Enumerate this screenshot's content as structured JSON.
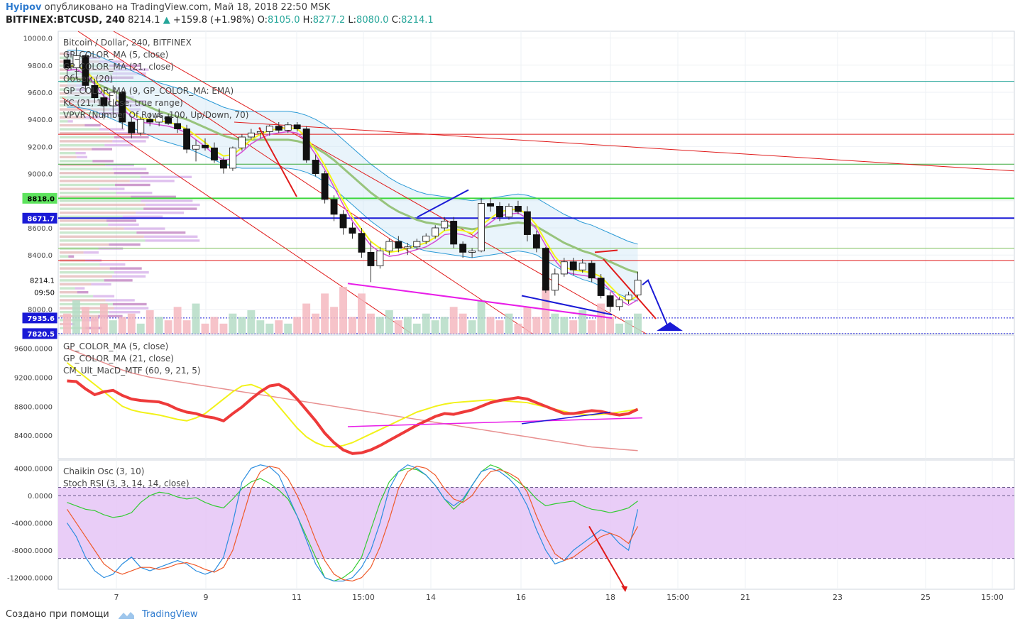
{
  "header": {
    "author": "Hyipov",
    "published_text": "опубликовано на TradingView.com, Май 18, 2018 22:50 MSK",
    "symbol": "BITFINEX:BTCUSD, 240",
    "last": "8214.1",
    "change_arrow": "▲",
    "change": "+159.8 (+1.98%)",
    "o_label": "O:",
    "o": "8105.0",
    "h_label": "H:",
    "h": "8277.2",
    "l_label": "L:",
    "l": "8080.0",
    "c_label": "C:",
    "c": "8214.1"
  },
  "main_pane": {
    "legend": [
      "Bitcoin / Dollar, 240, BITFINEX",
      "GP_COLOR_MA (5, close)",
      "GP_COLOR_MA (21, close)",
      "Объем (20)",
      "GP_COLOR_MA (9, GP_COLOR_MA: EMA)",
      "KC (21, 1, close, true range)",
      "VPVR (Number Of Rows, 100, Up/Down, 70)"
    ],
    "y_ticks": [
      "10000.0",
      "9800.0",
      "9600.0",
      "9400.0",
      "9200.0",
      "9000.0",
      "8600.0",
      "8400.0",
      "8000.0"
    ],
    "badges": [
      {
        "text": "8818.0",
        "color": "#5ee35e",
        "text_color": "#000000"
      },
      {
        "text": "8671.7",
        "color": "#1a1ad6",
        "text_color": "#ffffff"
      },
      {
        "text": "8214.1",
        "color": "#ffffff",
        "text_color": "#000000"
      },
      {
        "text": "09:50",
        "color": "#ffffff",
        "text_color": "#000000"
      },
      {
        "text": "7935.6",
        "color": "#1a1ad6",
        "text_color": "#ffffff"
      },
      {
        "text": "7820.5",
        "color": "#1a1ad6",
        "text_color": "#ffffff"
      }
    ]
  },
  "macd_pane": {
    "legend": [
      "GP_COLOR_MA (5, close)",
      "GP_COLOR_MA (21, close)",
      "CM_Ult_MacD_MTF (60, 9, 21, 5)"
    ],
    "y_ticks": [
      "9600.0000",
      "9200.0000",
      "8800.0000",
      "8400.0000"
    ]
  },
  "osc_pane": {
    "legend": [
      "Chaikin Osc (3, 10)",
      "Stoch RSI (3, 3, 14, 14, close)"
    ],
    "y_ticks": [
      "4000.0000",
      "0.0000",
      "-4000.0000",
      "-8000.0000",
      "-12000.0000"
    ]
  },
  "x_axis": {
    "ticks": [
      "7",
      "9",
      "11",
      "15:00",
      "14",
      "16",
      "18",
      "15:00",
      "21",
      "23",
      "25",
      "15:00"
    ]
  },
  "footer": {
    "created_with": "Создано при помощи",
    "brand": "TradingView"
  },
  "colors": {
    "up": "#26a69a",
    "down": "#000000",
    "band": "#2b9ad6",
    "ma_yellow": "#f5f51a",
    "ma_green": "#8fbf6f",
    "stoch_rsi_band": "#e7c8f6",
    "trend_red": "#e01b1b",
    "trend_blue": "#1a1ad6",
    "trend_magenta": "#e81ee8"
  },
  "chart_data": {
    "type": "candlestick",
    "symbol": "BITFINEX:BTCUSD",
    "timeframe": "240",
    "ylim": [
      7820,
      10050
    ],
    "x_range": [
      "May 6",
      "May 26"
    ],
    "candles": [
      [
        9840,
        9900,
        9720,
        9780
      ],
      [
        9780,
        9930,
        9700,
        9870
      ],
      [
        9870,
        9880,
        9600,
        9650
      ],
      [
        9650,
        9700,
        9520,
        9560
      ],
      [
        9560,
        9620,
        9400,
        9500
      ],
      [
        9500,
        9650,
        9460,
        9600
      ],
      [
        9600,
        9610,
        9330,
        9380
      ],
      [
        9380,
        9420,
        9260,
        9300
      ],
      [
        9300,
        9420,
        9280,
        9400
      ],
      [
        9400,
        9450,
        9350,
        9380
      ],
      [
        9380,
        9480,
        9350,
        9420
      ],
      [
        9420,
        9440,
        9360,
        9370
      ],
      [
        9370,
        9420,
        9300,
        9330
      ],
      [
        9330,
        9360,
        9150,
        9180
      ],
      [
        9180,
        9250,
        9090,
        9210
      ],
      [
        9210,
        9260,
        9170,
        9190
      ],
      [
        9190,
        9230,
        9080,
        9100
      ],
      [
        9100,
        9120,
        9000,
        9040
      ],
      [
        9040,
        9200,
        9020,
        9190
      ],
      [
        9190,
        9290,
        9170,
        9270
      ],
      [
        9270,
        9330,
        9250,
        9300
      ],
      [
        9300,
        9340,
        9260,
        9310
      ],
      [
        9310,
        9360,
        9280,
        9350
      ],
      [
        9350,
        9380,
        9300,
        9320
      ],
      [
        9320,
        9380,
        9300,
        9360
      ],
      [
        9360,
        9380,
        9310,
        9330
      ],
      [
        9330,
        9350,
        9080,
        9100
      ],
      [
        9100,
        9140,
        8980,
        9000
      ],
      [
        9000,
        9020,
        8780,
        8810
      ],
      [
        8810,
        8840,
        8650,
        8700
      ],
      [
        8700,
        8730,
        8550,
        8600
      ],
      [
        8600,
        8640,
        8520,
        8560
      ],
      [
        8560,
        8600,
        8380,
        8420
      ],
      [
        8420,
        8500,
        8200,
        8320
      ],
      [
        8320,
        8460,
        8300,
        8430
      ],
      [
        8430,
        8520,
        8400,
        8500
      ],
      [
        8500,
        8540,
        8420,
        8450
      ],
      [
        8450,
        8490,
        8400,
        8460
      ],
      [
        8460,
        8520,
        8440,
        8500
      ],
      [
        8500,
        8560,
        8480,
        8540
      ],
      [
        8540,
        8620,
        8520,
        8600
      ],
      [
        8600,
        8680,
        8580,
        8650
      ],
      [
        8650,
        8680,
        8450,
        8480
      ],
      [
        8480,
        8500,
        8380,
        8420
      ],
      [
        8420,
        8450,
        8380,
        8430
      ],
      [
        8430,
        8820,
        8420,
        8780
      ],
      [
        8780,
        8820,
        8720,
        8760
      ],
      [
        8760,
        8790,
        8650,
        8680
      ],
      [
        8680,
        8780,
        8660,
        8760
      ],
      [
        8760,
        8800,
        8700,
        8720
      ],
      [
        8720,
        8760,
        8500,
        8550
      ],
      [
        8550,
        8580,
        8420,
        8450
      ],
      [
        8450,
        8460,
        8120,
        8140
      ],
      [
        8140,
        8300,
        8100,
        8260
      ],
      [
        8260,
        8380,
        8240,
        8350
      ],
      [
        8350,
        8380,
        8250,
        8290
      ],
      [
        8290,
        8370,
        8270,
        8340
      ],
      [
        8340,
        8360,
        8200,
        8230
      ],
      [
        8230,
        8260,
        8080,
        8100
      ],
      [
        8100,
        8130,
        7980,
        8020
      ],
      [
        8020,
        8090,
        7990,
        8070
      ],
      [
        8070,
        8130,
        8040,
        8105
      ],
      [
        8105,
        8277,
        8080,
        8214
      ]
    ],
    "ma_fast": [
      9790,
      9800,
      9760,
      9690,
      9600,
      9560,
      9510,
      9450,
      9410,
      9400,
      9390,
      9380,
      9360,
      9330,
      9280,
      9230,
      9170,
      9130,
      9140,
      9190,
      9250,
      9290,
      9320,
      9330,
      9340,
      9330,
      9270,
      9170,
      9060,
      8930,
      8800,
      8680,
      8590,
      8500,
      8450,
      8420,
      8430,
      8450,
      8470,
      8490,
      8530,
      8580,
      8590,
      8580,
      8560,
      8620,
      8670,
      8720,
      8730,
      8740,
      8700,
      8620,
      8500,
      8390,
      8310,
      8290,
      8280,
      8270,
      8240,
      8170,
      8100,
      8060,
      8100
    ],
    "ma_slow": [
      9700,
      9700,
      9690,
      9670,
      9640,
      9610,
      9580,
      9550,
      9520,
      9490,
      9460,
      9440,
      9420,
      9400,
      9370,
      9340,
      9310,
      9280,
      9260,
      9250,
      9250,
      9250,
      9250,
      9250,
      9250,
      9240,
      9220,
      9190,
      9150,
      9100,
      9040,
      8980,
      8920,
      8860,
      8810,
      8760,
      8720,
      8690,
      8660,
      8640,
      8630,
      8620,
      8610,
      8600,
      8590,
      8600,
      8610,
      8620,
      8630,
      8640,
      8630,
      8610,
      8570,
      8530,
      8490,
      8460,
      8430,
      8410,
      8380,
      8350,
      8320,
      8290,
      8270
    ],
    "volume": [
      6,
      10,
      8,
      5,
      9,
      4,
      5,
      6,
      3,
      7,
      5,
      4,
      8,
      4,
      9,
      3,
      5,
      3,
      6,
      5,
      7,
      4,
      3,
      4,
      3,
      5,
      9,
      6,
      12,
      8,
      14,
      5,
      12,
      6,
      5,
      7,
      4,
      5,
      3,
      6,
      4,
      5,
      8,
      6,
      4,
      10,
      5,
      4,
      6,
      3,
      8,
      5,
      14,
      6,
      5,
      4,
      7,
      4,
      9,
      5,
      3,
      4,
      6
    ],
    "horizontal_levels": [
      {
        "price": 9680,
        "color": "#26a69a"
      },
      {
        "price": 9290,
        "color": "#e01b1b"
      },
      {
        "price": 9070,
        "color": "#3aa83a"
      },
      {
        "price": 8818,
        "color": "#3cd63c"
      },
      {
        "price": 8671.7,
        "color": "#1a1ad6"
      },
      {
        "price": 8450,
        "color": "#7bbf5a"
      },
      {
        "price": 8360,
        "color": "#e01b1b"
      },
      {
        "price": 7935.6,
        "color": "#1a1ad6"
      },
      {
        "price": 7820.5,
        "color": "#1a1ad6"
      }
    ],
    "macd_series": {
      "red": [
        9150,
        9140,
        9040,
        8960,
        9000,
        9020,
        8950,
        8900,
        8880,
        8870,
        8860,
        8820,
        8760,
        8720,
        8700,
        8660,
        8640,
        8600,
        8700,
        8790,
        8900,
        9000,
        9080,
        9100,
        9030,
        8900,
        8750,
        8600,
        8430,
        8300,
        8200,
        8150,
        8160,
        8200,
        8260,
        8330,
        8400,
        8470,
        8540,
        8600,
        8660,
        8700,
        8690,
        8720,
        8750,
        8800,
        8850,
        8880,
        8900,
        8920,
        8900,
        8850,
        8800,
        8750,
        8700,
        8700,
        8720,
        8740,
        8730,
        8700,
        8680,
        8700,
        8760
      ],
      "yellow": [
        9400,
        9300,
        9200,
        9100,
        9000,
        8900,
        8800,
        8750,
        8720,
        8700,
        8680,
        8650,
        8620,
        8600,
        8640,
        8700,
        8800,
        8900,
        9000,
        9080,
        9100,
        9050,
        8950,
        8800,
        8650,
        8500,
        8380,
        8300,
        8250,
        8240,
        8260,
        8300,
        8360,
        8420,
        8480,
        8540,
        8600,
        8660,
        8720,
        8760,
        8800,
        8830,
        8850,
        8860,
        8870,
        8880,
        8890,
        8880,
        8870,
        8860,
        8850,
        8820,
        8790,
        8760,
        8730,
        8700,
        8690,
        8680,
        8690,
        8700,
        8720,
        8740,
        8760
      ],
      "pink": [
        9600,
        9550,
        9500,
        9450,
        9400,
        9350,
        9300,
        9260,
        9230,
        9200,
        9180,
        9160,
        9140,
        9120,
        9100,
        9080,
        9060,
        9040,
        9020,
        9000,
        8980,
        8960,
        8940,
        8920,
        8900,
        8880,
        8860,
        8840,
        8820,
        8800,
        8780,
        8760,
        8740,
        8720,
        8700,
        8680,
        8660,
        8640,
        8620,
        8600,
        8580,
        8560,
        8540,
        8520,
        8500,
        8480,
        8460,
        8440,
        8420,
        8400,
        8380,
        8360,
        8340,
        8320,
        8300,
        8280,
        8260,
        8240,
        8230,
        8220,
        8210,
        8200,
        8190
      ]
    },
    "chaikin_osc": [
      -1000,
      -1500,
      -2000,
      -2200,
      -2800,
      -3200,
      -3000,
      -2500,
      -1000,
      0,
      500,
      300,
      -200,
      -500,
      -300,
      -1000,
      -1500,
      -1800,
      -500,
      1000,
      2000,
      2500,
      1800,
      800,
      -500,
      -3000,
      -6000,
      -9000,
      -12000,
      -12500,
      -12000,
      -11000,
      -9000,
      -5000,
      -1000,
      2000,
      3500,
      4000,
      3800,
      3000,
      1500,
      -500,
      -2000,
      -800,
      1500,
      3500,
      4500,
      4000,
      3000,
      2000,
      1000,
      -500,
      -1500,
      -1200,
      -1000,
      -800,
      -1500,
      -2000,
      -2200,
      -2500,
      -2200,
      -1800,
      -800
    ],
    "stoch_rsi_k": [
      -4000,
      -6000,
      -9000,
      -11000,
      -12000,
      -11500,
      -10000,
      -9000,
      -10500,
      -11000,
      -10500,
      -10000,
      -9500,
      -10000,
      -11000,
      -11500,
      -11000,
      -9000,
      -4000,
      2000,
      4000,
      4500,
      4200,
      3000,
      0,
      -3000,
      -6500,
      -10000,
      -12000,
      -12500,
      -12500,
      -12000,
      -10500,
      -8000,
      -4000,
      1000,
      3500,
      4500,
      4000,
      3000,
      1500,
      -500,
      -1500,
      -500,
      1500,
      3500,
      4000,
      3500,
      2500,
      1000,
      -1500,
      -5000,
      -8000,
      -10000,
      -9500,
      -8000,
      -7000,
      -6000,
      -5000,
      -5500,
      -7000,
      -8000,
      -2000
    ],
    "stoch_rsi_d": [
      -2000,
      -4000,
      -6000,
      -8000,
      -10000,
      -11000,
      -11500,
      -11000,
      -10500,
      -10500,
      -10800,
      -10500,
      -10000,
      -9800,
      -10200,
      -10800,
      -11200,
      -10500,
      -8000,
      -3500,
      1000,
      3500,
      4300,
      4000,
      2500,
      0,
      -3000,
      -6500,
      -9500,
      -11500,
      -12300,
      -12500,
      -12000,
      -10500,
      -7500,
      -3500,
      1000,
      3500,
      4300,
      4000,
      3000,
      1000,
      -500,
      -1000,
      0,
      2000,
      3500,
      3800,
      3300,
      2500,
      500,
      -3000,
      -6000,
      -8500,
      -9500,
      -9000,
      -8000,
      -7000,
      -6000,
      -5500,
      -6000,
      -7000,
      -4500
    ],
    "stoch_rsi_bands": [
      1200,
      -9200
    ]
  }
}
